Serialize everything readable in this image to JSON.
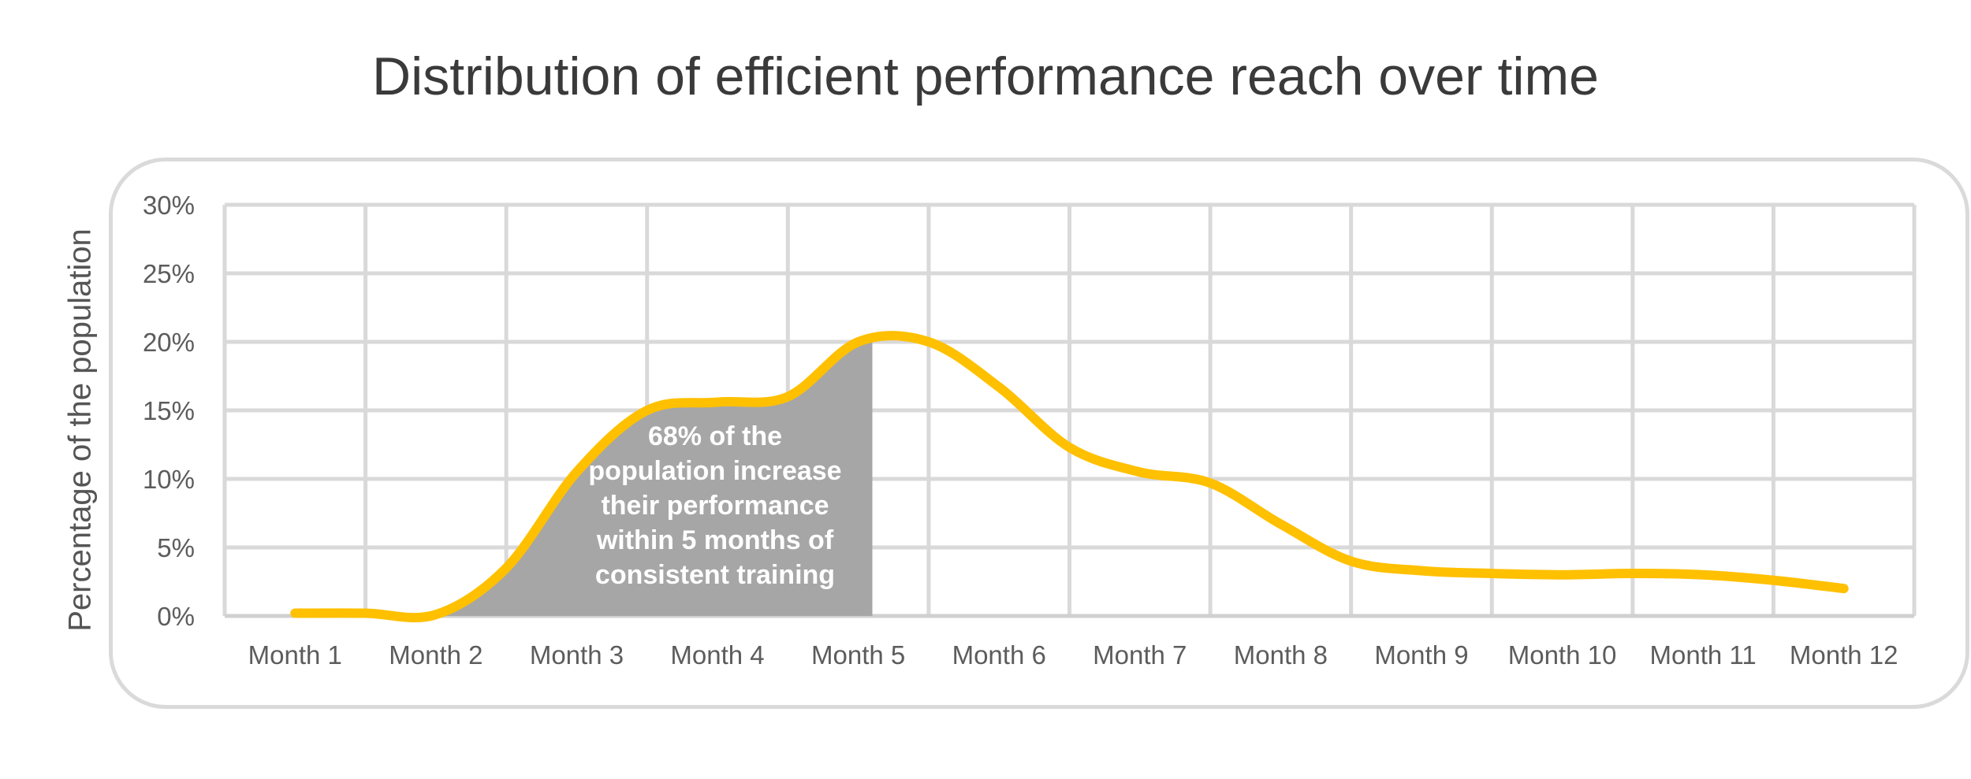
{
  "chart_data": {
    "type": "line",
    "title": "Distribution of efficient performance reach over time",
    "ylabel": "Percentage of the population",
    "xlabel": "",
    "categories": [
      "Month 1",
      "Month 2",
      "Month 3",
      "Month 4",
      "Month 5",
      "Month 6",
      "Month 7",
      "Month 8",
      "Month 9",
      "Month 10",
      "Month 11",
      "Month 12"
    ],
    "y_ticks": [
      "0%",
      "5%",
      "10%",
      "15%",
      "20%",
      "25%",
      "30%"
    ],
    "ylim": [
      0,
      30
    ],
    "grid": true,
    "series": [
      {
        "x": [
          1,
          1.5,
          2,
          2.5,
          3,
          3.5,
          4,
          4.5,
          5,
          5.5,
          6,
          6.5,
          7,
          7.5,
          8,
          8.5,
          9,
          9.5,
          10,
          10.5,
          11,
          11.5,
          12
        ],
        "values": [
          0.2,
          0.2,
          0.1,
          3.5,
          10.5,
          15.0,
          15.6,
          16.0,
          20.0,
          20.0,
          16.7,
          12.3,
          10.5,
          9.7,
          6.7,
          4.0,
          3.3,
          3.1,
          3.0,
          3.1,
          3.0,
          2.6,
          2.0
        ],
        "color": "#FFC000"
      }
    ],
    "highlight": {
      "from_x": 2,
      "to_x": 5.1,
      "color": "#A6A6A6",
      "annotation": [
        "68% of the",
        "population increase",
        "their performance",
        "within 5 months of",
        "consistent training"
      ]
    }
  }
}
